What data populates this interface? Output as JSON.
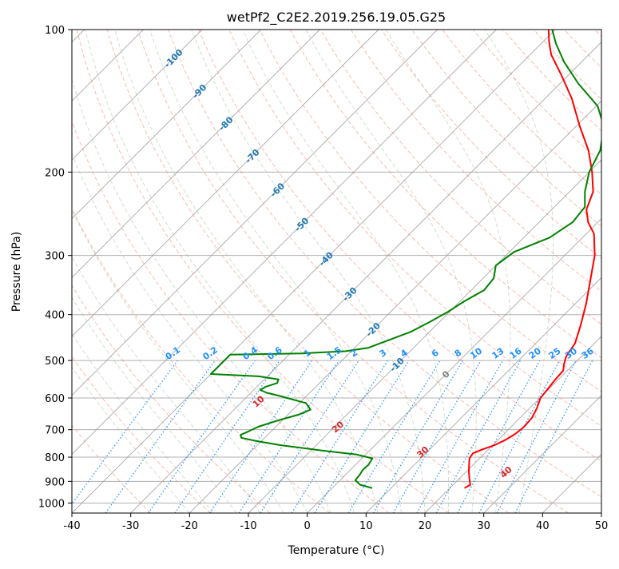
{
  "chart_data": {
    "type": "line",
    "diagram": "skew-T log-P",
    "title": "wetPf2_C2E2.2019.256.19.05.G25",
    "xlabel": "Temperature (°C)",
    "ylabel": "Pressure (hPa)",
    "xlim": [
      -40,
      50
    ],
    "ylim": [
      1050,
      100
    ],
    "yscale": "log",
    "grid": true,
    "x_ticks": [
      -40,
      -30,
      -20,
      -10,
      0,
      10,
      20,
      30,
      40,
      50
    ],
    "y_ticks": [
      100,
      200,
      300,
      400,
      500,
      600,
      700,
      800,
      900,
      1000
    ],
    "colors": {
      "temperature": "#ff0000",
      "dewpoint": "#008000",
      "isotherm": "#999999",
      "dry_adiabat": "#fa8072",
      "moist_adiabat": "#8fbc8f",
      "mixing_ratio": "#1e90ff",
      "dry_adiabat_label": "#d62728",
      "isotherm_label_cold": "#1f77b4",
      "isotherm_label_zero": "#7f7f7f",
      "tan_curve": "#d2b48c"
    },
    "series": [
      {
        "name": "",
        "kind": "temperature",
        "points": [
          {
            "p": 930,
            "t": 22.5
          },
          {
            "p": 915,
            "t": 22.9
          },
          {
            "p": 890,
            "t": 21.8
          },
          {
            "p": 860,
            "t": 20.5
          },
          {
            "p": 830,
            "t": 19.3
          },
          {
            "p": 805,
            "t": 18.3
          },
          {
            "p": 785,
            "t": 18.0
          },
          {
            "p": 770,
            "t": 19.0
          },
          {
            "p": 755,
            "t": 20.3
          },
          {
            "p": 735,
            "t": 21.3
          },
          {
            "p": 715,
            "t": 21.9
          },
          {
            "p": 690,
            "t": 22.2
          },
          {
            "p": 660,
            "t": 22.0
          },
          {
            "p": 630,
            "t": 21.2
          },
          {
            "p": 600,
            "t": 20.1
          },
          {
            "p": 575,
            "t": 19.8
          },
          {
            "p": 550,
            "t": 19.5
          },
          {
            "p": 525,
            "t": 19.3
          },
          {
            "p": 510,
            "t": 18.4
          },
          {
            "p": 490,
            "t": 17.4
          },
          {
            "p": 460,
            "t": 16.7
          },
          {
            "p": 420,
            "t": 14.5
          },
          {
            "p": 380,
            "t": 11.9
          },
          {
            "p": 340,
            "t": 8.7
          },
          {
            "p": 300,
            "t": 5.1
          },
          {
            "p": 270,
            "t": 1.3
          },
          {
            "p": 255,
            "t": -1.7
          },
          {
            "p": 240,
            "t": -4.1
          },
          {
            "p": 220,
            "t": -6.0
          },
          {
            "p": 200,
            "t": -9.5
          },
          {
            "p": 180,
            "t": -13.8
          },
          {
            "p": 160,
            "t": -19.4
          },
          {
            "p": 140,
            "t": -25.4
          },
          {
            "p": 125,
            "t": -31.1
          },
          {
            "p": 113,
            "t": -36.4
          },
          {
            "p": 106,
            "t": -39.0
          },
          {
            "p": 100,
            "t": -41.1
          }
        ]
      },
      {
        "name": "",
        "kind": "dewpoint",
        "points": [
          {
            "p": 930,
            "t": 6.8
          },
          {
            "p": 915,
            "t": 4.2
          },
          {
            "p": 895,
            "t": 2.6
          },
          {
            "p": 870,
            "t": 2.4
          },
          {
            "p": 850,
            "t": 2.1
          },
          {
            "p": 830,
            "t": 2.2
          },
          {
            "p": 805,
            "t": 1.8
          },
          {
            "p": 790,
            "t": -1.5
          },
          {
            "p": 775,
            "t": -8.0
          },
          {
            "p": 755,
            "t": -16.0
          },
          {
            "p": 740,
            "t": -20.8
          },
          {
            "p": 728,
            "t": -24.0
          },
          {
            "p": 718,
            "t": -24.6
          },
          {
            "p": 708,
            "t": -24.0
          },
          {
            "p": 690,
            "t": -23.0
          },
          {
            "p": 670,
            "t": -20.8
          },
          {
            "p": 650,
            "t": -18.1
          },
          {
            "p": 635,
            "t": -17.0
          },
          {
            "p": 615,
            "t": -18.9
          },
          {
            "p": 595,
            "t": -24.3
          },
          {
            "p": 585,
            "t": -27.3
          },
          {
            "p": 577,
            "t": -28.9
          },
          {
            "p": 568,
            "t": -28.5
          },
          {
            "p": 558,
            "t": -27.2
          },
          {
            "p": 548,
            "t": -27.6
          },
          {
            "p": 540,
            "t": -31.5
          },
          {
            "p": 534,
            "t": -40.0
          },
          {
            "p": 486,
            "t": -40.0
          },
          {
            "p": 483,
            "t": -28.0
          },
          {
            "p": 478,
            "t": -21.0
          },
          {
            "p": 470,
            "t": -17.7
          },
          {
            "p": 455,
            "t": -15.8
          },
          {
            "p": 435,
            "t": -13.2
          },
          {
            "p": 415,
            "t": -11.7
          },
          {
            "p": 395,
            "t": -10.3
          },
          {
            "p": 375,
            "t": -9.3
          },
          {
            "p": 355,
            "t": -7.8
          },
          {
            "p": 335,
            "t": -8.2
          },
          {
            "p": 315,
            "t": -10.0
          },
          {
            "p": 295,
            "t": -9.2
          },
          {
            "p": 275,
            "t": -5.6
          },
          {
            "p": 255,
            "t": -4.3
          },
          {
            "p": 237,
            "t": -4.8
          },
          {
            "p": 220,
            "t": -7.4
          },
          {
            "p": 200,
            "t": -10.0
          },
          {
            "p": 180,
            "t": -11.8
          },
          {
            "p": 160,
            "t": -15.3
          },
          {
            "p": 145,
            "t": -19.8
          },
          {
            "p": 130,
            "t": -26.9
          },
          {
            "p": 117,
            "t": -33.0
          },
          {
            "p": 107,
            "t": -37.5
          },
          {
            "p": 100,
            "t": -40.5
          }
        ]
      }
    ],
    "isotherm_labels": [
      {
        "text": "-100",
        "t": -100
      },
      {
        "text": "-90",
        "t": -90
      },
      {
        "text": "-80",
        "t": -80
      },
      {
        "text": "-70",
        "t": -70
      },
      {
        "text": "-60",
        "t": -60
      },
      {
        "text": "-50",
        "t": -50
      },
      {
        "text": "-40",
        "t": -40
      },
      {
        "text": "-30",
        "t": -30
      },
      {
        "text": "-20",
        "t": -20
      },
      {
        "text": "-10",
        "t": -10
      },
      {
        "text": "0",
        "t": 0
      }
    ],
    "dry_adiabat_labels": [
      {
        "text": "10",
        "t": 10
      },
      {
        "text": "20",
        "t": 20
      },
      {
        "text": "30",
        "t": 30
      },
      {
        "text": "40",
        "t": 40
      }
    ],
    "mixing_ratio_labels": [
      {
        "text": "0.1",
        "w": 0.1
      },
      {
        "text": "0.2",
        "w": 0.2
      },
      {
        "text": "0.4",
        "w": 0.4
      },
      {
        "text": "0.6",
        "w": 0.6
      },
      {
        "text": "1",
        "w": 1
      },
      {
        "text": "1.5",
        "w": 1.5
      },
      {
        "text": "2",
        "w": 2
      },
      {
        "text": "3",
        "w": 3
      },
      {
        "text": "4",
        "w": 4
      },
      {
        "text": "6",
        "w": 6
      },
      {
        "text": "8",
        "w": 8
      },
      {
        "text": "10",
        "w": 10
      },
      {
        "text": "13",
        "w": 13
      },
      {
        "text": "16",
        "w": 16
      },
      {
        "text": "20",
        "w": 20
      },
      {
        "text": "25",
        "w": 25
      },
      {
        "text": "30",
        "w": 30
      },
      {
        "text": "36",
        "w": 36
      }
    ]
  }
}
